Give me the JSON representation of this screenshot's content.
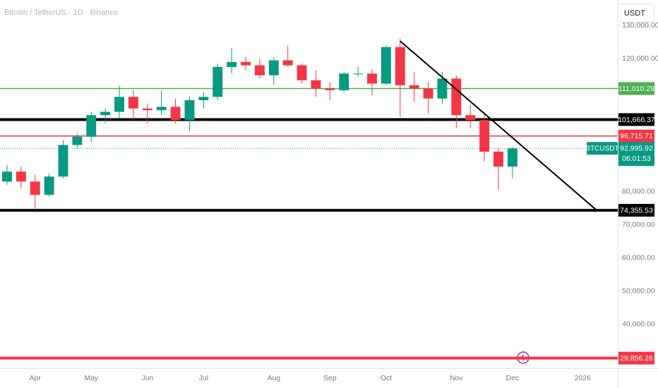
{
  "chart_data": {
    "type": "candlestick",
    "title": "Bitcoin / TetherUS · 1D · Binance",
    "currency_button": "USDT",
    "categories": [
      null,
      null,
      "Apr",
      null,
      null,
      null,
      "May",
      null,
      null,
      null,
      "Jun",
      null,
      null,
      null,
      "Jul",
      null,
      null,
      null,
      null,
      "Aug",
      null,
      null,
      null,
      "Sep",
      null,
      null,
      null,
      "Oct",
      null,
      null,
      null,
      null,
      "Nov",
      null,
      null,
      null,
      "Dec",
      null,
      null,
      null,
      null,
      "2026",
      null,
      null
    ],
    "open": [
      83000,
      86000,
      83000,
      79000,
      84500,
      94000,
      96500,
      103000,
      104000,
      108500,
      105000,
      104500,
      105500,
      101500,
      107500,
      108500,
      117500,
      119000,
      118000,
      115000,
      119500,
      118000,
      113500,
      111000,
      110500,
      115500,
      115500,
      112500,
      123500,
      112000,
      111000,
      108000,
      114000,
      103000,
      101500,
      92000,
      87500,
      null,
      null,
      null,
      null,
      null,
      null,
      null
    ],
    "high": [
      88000,
      87500,
      85000,
      85500,
      95500,
      97500,
      104000,
      105000,
      111900,
      110500,
      106500,
      110500,
      108000,
      108500,
      110000,
      118500,
      123200,
      120500,
      120000,
      120500,
      124000,
      118500,
      116500,
      113000,
      116000,
      117500,
      117000,
      124000,
      126000,
      116000,
      113000,
      116000,
      115000,
      106000,
      104000,
      93000,
      93500,
      null,
      null,
      null,
      null,
      null,
      null,
      null
    ],
    "low": [
      82000,
      81000,
      74500,
      78500,
      84000,
      93000,
      95000,
      100500,
      102000,
      101500,
      100500,
      103000,
      100500,
      98200,
      105000,
      107500,
      115500,
      116500,
      114000,
      112000,
      117500,
      112500,
      108500,
      107500,
      110000,
      114500,
      109000,
      112000,
      102500,
      107000,
      103500,
      106500,
      99000,
      99000,
      89000,
      80600,
      84000,
      null,
      null,
      null,
      null,
      null,
      null,
      null
    ],
    "close": [
      86000,
      83000,
      79000,
      84500,
      94000,
      96500,
      103000,
      104000,
      108500,
      105000,
      104500,
      105500,
      101500,
      107500,
      108500,
      117500,
      119000,
      118000,
      115000,
      119500,
      118000,
      113500,
      111000,
      110500,
      115500,
      115500,
      112500,
      123500,
      112000,
      111000,
      108000,
      114000,
      103000,
      101500,
      92000,
      87500,
      92995.92,
      null,
      null,
      null,
      null,
      null,
      null,
      null
    ],
    "up_color": "#089981",
    "down_color": "#f23645",
    "ylim": [
      26800,
      137660
    ],
    "yticks": [
      {
        "value": 130000,
        "label": "130,000.00"
      },
      {
        "value": 120000,
        "label": "120,000.00"
      },
      {
        "value": 80000,
        "label": "80,000.00"
      },
      {
        "value": 70000,
        "label": "70,000.00"
      },
      {
        "value": 60000,
        "label": "60,000.00"
      },
      {
        "value": 50000,
        "label": "50,000.00"
      },
      {
        "value": 40000,
        "label": "40,000.00"
      }
    ],
    "levels": [
      {
        "value": 111010.29,
        "label": "111,010.29",
        "color": "#4caf50"
      },
      {
        "value": 101666.37,
        "label": "101,666.37",
        "color": "#000000"
      },
      {
        "value": 96715.71,
        "label": "96,715.71",
        "color": "#f23645"
      },
      {
        "value": 74355.53,
        "label": "74,355.53",
        "color": "#000000"
      },
      {
        "value": 29856.26,
        "label": "29,856.26",
        "color": "#f23645"
      }
    ],
    "current_price": {
      "value": 92995.92,
      "label": "92,995.92",
      "symbol": "BTCUSDT",
      "countdown": "06:01:53",
      "color": "#089981"
    },
    "trendline": {
      "start": {
        "index": 28,
        "value": 125300
      },
      "end": {
        "index": 42,
        "value": 74360
      },
      "color": "#000000"
    }
  }
}
